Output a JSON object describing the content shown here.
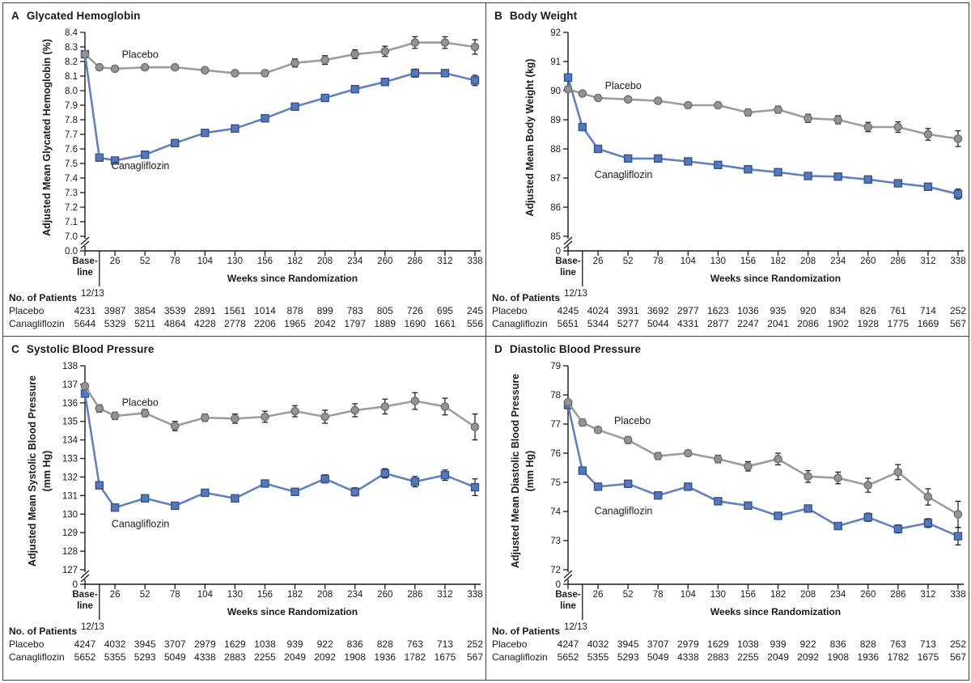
{
  "shared": {
    "xlabel": "Weeks since Randomization",
    "baseline_label_lines": [
      "Base-",
      "line"
    ],
    "sub_tick_week": 12.5,
    "sub_tick_label": "12/13",
    "patients_heading": "No. of Patients",
    "colors": {
      "placebo_line": "#9d9d9d",
      "placebo_fill": "#949494",
      "placebo_edge": "#6f6f6f",
      "cana_line": "#6281c1",
      "cana_fill": "#5677b9",
      "cana_edge": "#35538f",
      "error_bar": "#141414",
      "text": "#1a1a1a",
      "frame": "#3f3f3f"
    }
  },
  "chart_data": [
    {
      "type": "line",
      "panel_letter": "A",
      "title": "Glycated Hemoglobin",
      "ylabel_lines": [
        "Adjusted Mean Glycated Hemoglobin (%)"
      ],
      "xlabel": "Weeks since Randomization",
      "x_weeks": [
        0,
        12.5,
        26,
        52,
        78,
        104,
        130,
        156,
        182,
        208,
        234,
        260,
        286,
        312,
        338
      ],
      "x_tick_weeks": [
        0,
        26,
        52,
        78,
        104,
        130,
        156,
        182,
        208,
        234,
        260,
        286,
        312,
        338
      ],
      "x_tick_labels": [
        "Baseline",
        "26",
        "52",
        "78",
        "104",
        "130",
        "156",
        "182",
        "208",
        "234",
        "260",
        "286",
        "312",
        "338"
      ],
      "ylim": [
        7.0,
        8.4
      ],
      "y_tick_step": 0.1,
      "y_decimals": 1,
      "axis_break_zero_label": "0.0",
      "series": [
        {
          "name": "Canagliflozin",
          "marker": "square",
          "values": [
            8.25,
            7.54,
            7.52,
            7.56,
            7.64,
            7.71,
            7.74,
            7.81,
            7.89,
            7.95,
            8.01,
            8.06,
            8.12,
            8.12,
            8.07
          ],
          "errors": [
            0,
            0.013,
            0.013,
            0.013,
            0.014,
            0.014,
            0.016,
            0.016,
            0.02,
            0.02,
            0.022,
            0.024,
            0.028,
            0.02,
            0.035
          ],
          "label_week": 23,
          "label_value": 7.46
        },
        {
          "name": "Placebo",
          "marker": "circle",
          "values": [
            8.25,
            8.16,
            8.15,
            8.16,
            8.16,
            8.14,
            8.12,
            8.12,
            8.19,
            8.21,
            8.25,
            8.27,
            8.33,
            8.33,
            8.3
          ],
          "errors": [
            0,
            0.018,
            0.018,
            0.018,
            0.018,
            0.018,
            0.02,
            0.022,
            0.028,
            0.03,
            0.03,
            0.035,
            0.04,
            0.04,
            0.05
          ],
          "label_week": 32,
          "label_value": 8.225
        }
      ],
      "patients": {
        "heading": "No. of Patients",
        "rows": [
          {
            "label": "Placebo",
            "values": [
              4231,
              3987,
              3854,
              3539,
              2891,
              1561,
              1014,
              878,
              899,
              783,
              805,
              726,
              695,
              245
            ]
          },
          {
            "label": "Canagliflozin",
            "values": [
              5644,
              5329,
              5211,
              4864,
              4228,
              2778,
              2206,
              1965,
              2042,
              1797,
              1889,
              1690,
              1661,
              556
            ]
          }
        ]
      }
    },
    {
      "type": "line",
      "panel_letter": "B",
      "title": "Body Weight",
      "ylabel_lines": [
        "Adjusted Mean Body Weight (kg)"
      ],
      "xlabel": "Weeks since Randomization",
      "x_weeks": [
        0,
        12.5,
        26,
        52,
        78,
        104,
        130,
        156,
        182,
        208,
        234,
        260,
        286,
        312,
        338
      ],
      "x_tick_weeks": [
        0,
        26,
        52,
        78,
        104,
        130,
        156,
        182,
        208,
        234,
        260,
        286,
        312,
        338
      ],
      "x_tick_labels": [
        "Baseline",
        "26",
        "52",
        "78",
        "104",
        "130",
        "156",
        "182",
        "208",
        "234",
        "260",
        "286",
        "312",
        "338"
      ],
      "ylim": [
        85,
        92
      ],
      "y_tick_step": 1,
      "y_decimals": 0,
      "axis_break_zero_label": "0",
      "series": [
        {
          "name": "Canagliflozin",
          "marker": "square",
          "values": [
            90.45,
            88.75,
            88.0,
            87.67,
            87.67,
            87.57,
            87.45,
            87.3,
            87.2,
            87.07,
            87.05,
            86.95,
            86.82,
            86.7,
            86.45
          ],
          "errors": [
            0,
            0.06,
            0.06,
            0.06,
            0.06,
            0.06,
            0.07,
            0.08,
            0.08,
            0.09,
            0.09,
            0.1,
            0.11,
            0.12,
            0.17
          ],
          "label_week": 23,
          "label_value": 87.0
        },
        {
          "name": "Placebo",
          "marker": "circle",
          "values": [
            90.05,
            89.9,
            89.75,
            89.7,
            89.65,
            89.5,
            89.5,
            89.25,
            89.35,
            89.05,
            89.0,
            88.75,
            88.75,
            88.5,
            88.35
          ],
          "errors": [
            0,
            0.08,
            0.08,
            0.08,
            0.08,
            0.09,
            0.1,
            0.12,
            0.12,
            0.14,
            0.14,
            0.16,
            0.18,
            0.2,
            0.27
          ],
          "label_week": 32,
          "label_value": 90.05
        }
      ],
      "patients": {
        "heading": "No. of Patients",
        "rows": [
          {
            "label": "Placebo",
            "values": [
              4245,
              4024,
              3931,
              3692,
              2977,
              1623,
              1036,
              935,
              920,
              834,
              826,
              761,
              714,
              252
            ]
          },
          {
            "label": "Canagliflozin",
            "values": [
              5651,
              5344,
              5277,
              5044,
              4331,
              2877,
              2247,
              2041,
              2086,
              1902,
              1928,
              1775,
              1669,
              567
            ]
          }
        ]
      }
    },
    {
      "type": "line",
      "panel_letter": "C",
      "title": "Systolic Blood Pressure",
      "ylabel_lines": [
        "Adjusted Mean Systolic Blood Pressure",
        "(mm Hg)"
      ],
      "xlabel": "Weeks since Randomization",
      "x_weeks": [
        0,
        12.5,
        26,
        52,
        78,
        104,
        130,
        156,
        182,
        208,
        234,
        260,
        286,
        312,
        338
      ],
      "x_tick_weeks": [
        0,
        26,
        52,
        78,
        104,
        130,
        156,
        182,
        208,
        234,
        260,
        286,
        312,
        338
      ],
      "x_tick_labels": [
        "Baseline",
        "26",
        "52",
        "78",
        "104",
        "130",
        "156",
        "182",
        "208",
        "234",
        "260",
        "286",
        "312",
        "338"
      ],
      "ylim": [
        127,
        138
      ],
      "y_tick_step": 1,
      "y_decimals": 0,
      "axis_break_zero_label": "0",
      "series": [
        {
          "name": "Canagliflozin",
          "marker": "square",
          "values": [
            136.5,
            131.55,
            130.35,
            130.85,
            130.45,
            131.15,
            130.85,
            131.65,
            131.2,
            131.9,
            131.2,
            132.2,
            131.75,
            132.1,
            131.45
          ],
          "errors": [
            0,
            0.15,
            0.15,
            0.15,
            0.15,
            0.15,
            0.18,
            0.18,
            0.2,
            0.22,
            0.22,
            0.25,
            0.28,
            0.28,
            0.45
          ],
          "label_week": 23,
          "label_value": 129.3
        },
        {
          "name": "Placebo",
          "marker": "circle",
          "values": [
            136.9,
            135.7,
            135.3,
            135.45,
            134.75,
            135.2,
            135.15,
            135.25,
            135.55,
            135.25,
            135.6,
            135.8,
            136.1,
            135.8,
            134.7
          ],
          "errors": [
            0,
            0.2,
            0.2,
            0.2,
            0.25,
            0.2,
            0.25,
            0.3,
            0.3,
            0.35,
            0.35,
            0.4,
            0.45,
            0.45,
            0.7
          ],
          "label_week": 32,
          "label_value": 135.85
        }
      ],
      "patients": {
        "heading": "No. of Patients",
        "rows": [
          {
            "label": "Placebo",
            "values": [
              4247,
              4032,
              3945,
              3707,
              2979,
              1629,
              1038,
              939,
              922,
              836,
              828,
              763,
              713,
              252
            ]
          },
          {
            "label": "Canagliflozin",
            "values": [
              5652,
              5355,
              5293,
              5049,
              4338,
              2883,
              2255,
              2049,
              2092,
              1908,
              1936,
              1782,
              1675,
              567
            ]
          }
        ]
      }
    },
    {
      "type": "line",
      "panel_letter": "D",
      "title": "Diastolic Blood Pressure",
      "ylabel_lines": [
        "Adjusted Mean Diastolic Blood Pressure",
        "(mm Hg)"
      ],
      "xlabel": "Weeks since Randomization",
      "x_weeks": [
        0,
        12.5,
        26,
        52,
        78,
        104,
        130,
        156,
        182,
        208,
        234,
        260,
        286,
        312,
        338
      ],
      "x_tick_weeks": [
        0,
        26,
        52,
        78,
        104,
        130,
        156,
        182,
        208,
        234,
        260,
        286,
        312,
        338
      ],
      "x_tick_labels": [
        "Baseline",
        "26",
        "52",
        "78",
        "104",
        "130",
        "156",
        "182",
        "208",
        "234",
        "260",
        "286",
        "312",
        "338"
      ],
      "ylim": [
        72,
        79
      ],
      "y_tick_step": 1,
      "y_decimals": 0,
      "axis_break_zero_label": "0",
      "series": [
        {
          "name": "Canagliflozin",
          "marker": "square",
          "values": [
            77.65,
            75.4,
            74.85,
            74.95,
            74.55,
            74.85,
            74.35,
            74.2,
            73.85,
            74.1,
            73.5,
            73.8,
            73.4,
            73.6,
            73.15
          ],
          "errors": [
            0,
            0.1,
            0.08,
            0.08,
            0.08,
            0.08,
            0.1,
            0.1,
            0.12,
            0.12,
            0.12,
            0.14,
            0.14,
            0.15,
            0.3
          ],
          "label_week": 23,
          "label_value": 73.9
        },
        {
          "name": "Placebo",
          "marker": "circle",
          "values": [
            77.75,
            77.05,
            76.8,
            76.45,
            75.9,
            76.0,
            75.8,
            75.55,
            75.8,
            75.2,
            75.15,
            74.9,
            75.35,
            74.5,
            73.9
          ],
          "errors": [
            0,
            0.12,
            0.1,
            0.12,
            0.12,
            0.1,
            0.13,
            0.16,
            0.2,
            0.2,
            0.2,
            0.24,
            0.26,
            0.28,
            0.45
          ],
          "label_week": 40,
          "label_value": 77.0
        }
      ],
      "patients": {
        "heading": "No. of Patients",
        "rows": [
          {
            "label": "Placebo",
            "values": [
              4247,
              4032,
              3945,
              3707,
              2979,
              1629,
              1038,
              939,
              922,
              836,
              828,
              763,
              713,
              252
            ]
          },
          {
            "label": "Canagliflozin",
            "values": [
              5652,
              5355,
              5293,
              5049,
              4338,
              2883,
              2255,
              2049,
              2092,
              1908,
              1936,
              1782,
              1675,
              567
            ]
          }
        ]
      }
    }
  ]
}
